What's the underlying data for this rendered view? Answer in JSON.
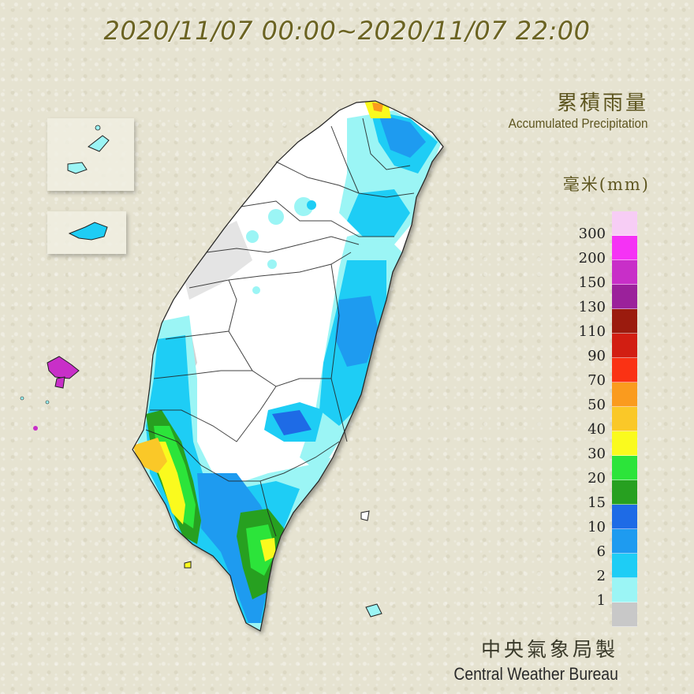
{
  "title": "2020/11/07 00:00~2020/11/07 22:00",
  "label_cn": "累積雨量",
  "label_en": "Accumulated Precipitation",
  "unit": "毫米(mm)",
  "legend": [
    {
      "label": "300",
      "color": "#f7cdf5"
    },
    {
      "label": "200",
      "color": "#f532f5"
    },
    {
      "label": "150",
      "color": "#c82fc8"
    },
    {
      "label": "130",
      "color": "#9b219b"
    },
    {
      "label": "110",
      "color": "#9b1b0e"
    },
    {
      "label": "90",
      "color": "#d21e12"
    },
    {
      "label": "70",
      "color": "#fa3214"
    },
    {
      "label": "50",
      "color": "#fa9b1e"
    },
    {
      "label": "40",
      "color": "#fac828"
    },
    {
      "label": "30",
      "color": "#fafa1e"
    },
    {
      "label": "20",
      "color": "#2ce43a"
    },
    {
      "label": "15",
      "color": "#27a020"
    },
    {
      "label": "10",
      "color": "#1e6be6"
    },
    {
      "label": "6",
      "color": "#1e9bf0"
    },
    {
      "label": "2",
      "color": "#1ecdf5"
    },
    {
      "label": "1",
      "color": "#9bf5f5"
    },
    {
      "label": "",
      "color": "#c8c8c8"
    }
  ],
  "credit_cn": "中央氣象局製",
  "credit_en": "Central Weather Bureau"
}
